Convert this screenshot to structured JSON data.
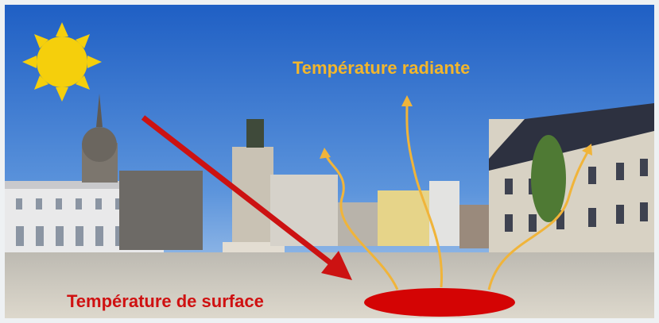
{
  "labels": {
    "radiant": "Température radiante",
    "surface": "Température de surface"
  }
}
